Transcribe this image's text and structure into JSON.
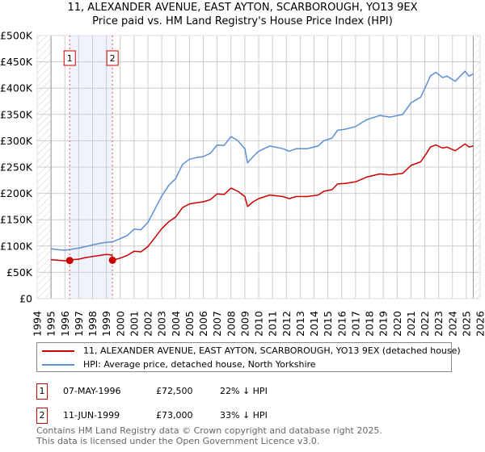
{
  "title_line1": "11, ALEXANDER AVENUE, EAST AYTON, SCARBOROUGH, YO13 9EX",
  "title_line2": "Price paid vs. HM Land Registry's House Price Index (HPI)",
  "colors": {
    "property": "#cc0000",
    "hpi": "#5b8fd6",
    "shade": "#eef3fc",
    "grid": "#cccccc"
  },
  "chart_data": {
    "type": "line",
    "title": "Price paid vs. HM Land Registry's House Price Index (HPI)",
    "xlim": [
      1994,
      2026
    ],
    "ylim": [
      0,
      500000
    ],
    "ytick_labels": [
      "£0",
      "£50K",
      "£100K",
      "£150K",
      "£200K",
      "£250K",
      "£300K",
      "£350K",
      "£400K",
      "£450K",
      "£500K"
    ],
    "ytick_values": [
      0,
      50000,
      100000,
      150000,
      200000,
      250000,
      300000,
      350000,
      400000,
      450000,
      500000
    ],
    "xtick_labels": [
      "1994",
      "1995",
      "1996",
      "1997",
      "1998",
      "1999",
      "2000",
      "2001",
      "2002",
      "2003",
      "2004",
      "2005",
      "2006",
      "2007",
      "2008",
      "2009",
      "2010",
      "2011",
      "2012",
      "2013",
      "2014",
      "2015",
      "2016",
      "2017",
      "2018",
      "2019",
      "2020",
      "2021",
      "2022",
      "2023",
      "2024",
      "2025",
      "2026"
    ],
    "grid": true,
    "data_range": [
      1995,
      2025.5
    ],
    "shaded_range": [
      1996.35,
      1999.44
    ],
    "series": [
      {
        "name": "11, ALEXANDER AVENUE, EAST AYTON, SCARBOROUGH, YO13 9EX (detached house)",
        "x": [
          1995,
          1995.5,
          1996,
          1996.35,
          1996.5,
          1997,
          1997.5,
          1998,
          1998.5,
          1999,
          1999.4,
          1999.44,
          2000,
          2000.5,
          2001,
          2001.5,
          2002,
          2002.5,
          2003,
          2003.5,
          2004,
          2004.5,
          2005,
          2005.5,
          2006,
          2006.5,
          2007,
          2007.5,
          2008,
          2008.5,
          2009,
          2009.2,
          2009.6,
          2010,
          2010.8,
          2011.75,
          2012.2,
          2012.7,
          2013.5,
          2014.3,
          2014.7,
          2015.3,
          2015.7,
          2016.25,
          2017,
          2017.8,
          2018.75,
          2019.5,
          2020.4,
          2021,
          2021.7,
          2022.1,
          2022.4,
          2022.8,
          2023.3,
          2023.6,
          2024.2,
          2024.9,
          2025.2,
          2025.5
        ],
        "values": [
          74000,
          73000,
          72000,
          72500,
          74000,
          75000,
          78000,
          80000,
          82000,
          84000,
          83000,
          73000,
          77000,
          82000,
          90000,
          89000,
          99000,
          116000,
          133000,
          146000,
          155000,
          173000,
          180000,
          182000,
          184000,
          188000,
          199000,
          198000,
          210000,
          204000,
          194000,
          175000,
          184000,
          190000,
          197000,
          194000,
          190000,
          194000,
          194000,
          197000,
          204000,
          207000,
          218000,
          219000,
          222000,
          231000,
          237000,
          235000,
          238000,
          253000,
          260000,
          275000,
          288000,
          292000,
          286000,
          288000,
          281000,
          294000,
          288000,
          290000
        ]
      },
      {
        "name": "HPI: Average price, detached house, North Yorkshire",
        "x": [
          1995,
          1995.5,
          1996,
          1996.5,
          1997,
          1997.5,
          1998,
          1998.5,
          1999,
          1999.44,
          2000,
          2000.5,
          2001,
          2001.5,
          2002,
          2002.5,
          2003,
          2003.5,
          2004,
          2004.5,
          2005,
          2005.5,
          2006,
          2006.5,
          2007,
          2007.5,
          2008,
          2008.5,
          2009,
          2009.2,
          2009.6,
          2010,
          2010.8,
          2011.75,
          2012.2,
          2012.7,
          2013.5,
          2014.3,
          2014.7,
          2015.3,
          2015.7,
          2016.25,
          2017,
          2017.8,
          2018.75,
          2019.5,
          2020.4,
          2021,
          2021.7,
          2022.1,
          2022.4,
          2022.8,
          2023.3,
          2023.6,
          2024.2,
          2024.9,
          2025.2,
          2025.5
        ],
        "values": [
          95000,
          93000,
          92000,
          94000,
          96000,
          99000,
          102000,
          105000,
          107000,
          108000,
          114000,
          120000,
          132000,
          131000,
          145000,
          170000,
          195000,
          215000,
          228000,
          255000,
          265000,
          268000,
          270000,
          276000,
          292000,
          291000,
          308000,
          300000,
          285000,
          258000,
          270000,
          280000,
          290000,
          285000,
          280000,
          285000,
          285000,
          290000,
          300000,
          305000,
          320000,
          322000,
          327000,
          340000,
          348000,
          345000,
          350000,
          372000,
          383000,
          405000,
          423000,
          430000,
          420000,
          423000,
          413000,
          432000,
          423000,
          427000
        ]
      }
    ],
    "sales": [
      {
        "label": "1",
        "x": 1996.35,
        "value": 72500
      },
      {
        "label": "2",
        "x": 1999.44,
        "value": 73000
      }
    ]
  },
  "legend": {
    "property": "11, ALEXANDER AVENUE, EAST AYTON, SCARBOROUGH, YO13 9EX (detached house)",
    "hpi": "HPI: Average price, detached house, North Yorkshire"
  },
  "sales_table": [
    {
      "label": "1",
      "date": "07-MAY-1996",
      "price": "£72,500",
      "hpi": "22% ↓ HPI"
    },
    {
      "label": "2",
      "date": "11-JUN-1999",
      "price": "£73,000",
      "hpi": "33% ↓ HPI"
    }
  ],
  "footer": {
    "line1": "Contains HM Land Registry data © Crown copyright and database right 2025.",
    "line2": "This data is licensed under the Open Government Licence v3.0."
  }
}
